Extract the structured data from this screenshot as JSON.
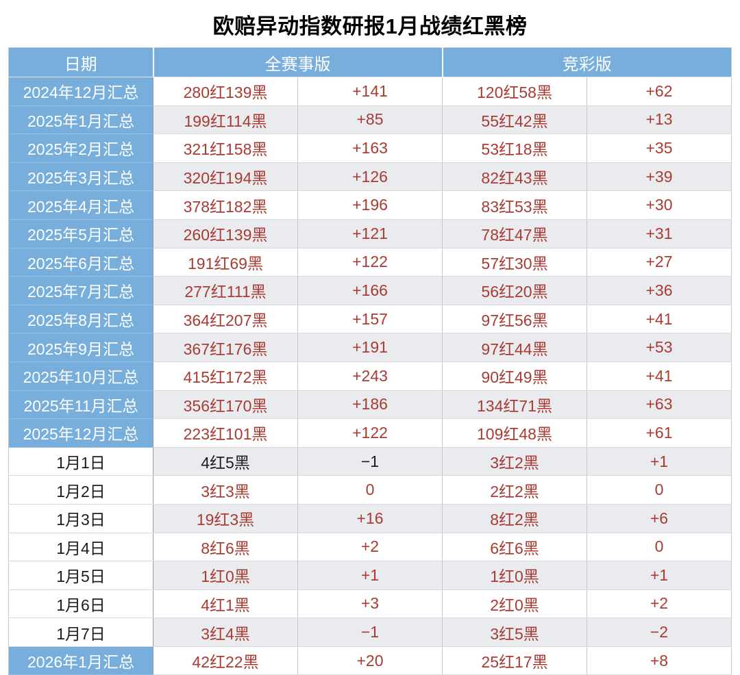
{
  "title": "欧赔异动指数研报1月战绩红黑榜",
  "header": {
    "date": "日期",
    "all_matches": "全赛事版",
    "jingcai": "竞彩版"
  },
  "colors": {
    "header_blue": "#77aedc",
    "summary_cell_blue": "#77aedc",
    "value_red": "#a93b32",
    "value_black": "#1c1c1e",
    "stripe_gray": "#e9ebef",
    "title_black": "#000000"
  },
  "chart_data": {
    "type": "table",
    "title": "欧赔异动指数研报1月战绩红黑榜",
    "columns": [
      {
        "label": "日期",
        "span": 1
      },
      {
        "label": "全赛事版",
        "span": 2
      },
      {
        "label": "竞彩版",
        "span": 2
      }
    ],
    "default_cell_color": "red",
    "rows": [
      {
        "date": "2024年12月汇总",
        "is_summary": true,
        "cells": [
          "280红139黑",
          "+141",
          "120红58黑",
          "+62"
        ]
      },
      {
        "date": "2025年1月汇总",
        "is_summary": true,
        "cells": [
          "199红114黑",
          "+85",
          "55红42黑",
          "+13"
        ]
      },
      {
        "date": "2025年2月汇总",
        "is_summary": true,
        "cells": [
          "321红158黑",
          "+163",
          "53红18黑",
          "+35"
        ]
      },
      {
        "date": "2025年3月汇总",
        "is_summary": true,
        "cells": [
          "320红194黑",
          "+126",
          "82红43黑",
          "+39"
        ]
      },
      {
        "date": "2025年4月汇总",
        "is_summary": true,
        "cells": [
          "378红182黑",
          "+196",
          "83红53黑",
          "+30"
        ]
      },
      {
        "date": "2025年5月汇总",
        "is_summary": true,
        "cells": [
          "260红139黑",
          "+121",
          "78红47黑",
          "+31"
        ]
      },
      {
        "date": "2025年6月汇总",
        "is_summary": true,
        "cells": [
          "191红69黑",
          "+122",
          "57红30黑",
          "+27"
        ]
      },
      {
        "date": "2025年7月汇总",
        "is_summary": true,
        "cells": [
          "277红111黑",
          "+166",
          "56红20黑",
          "+36"
        ]
      },
      {
        "date": "2025年8月汇总",
        "is_summary": true,
        "cells": [
          "364红207黑",
          "+157",
          "97红56黑",
          "+41"
        ]
      },
      {
        "date": "2025年9月汇总",
        "is_summary": true,
        "cells": [
          "367红176黑",
          "+191",
          "97红44黑",
          "+53"
        ]
      },
      {
        "date": "2025年10月汇总",
        "is_summary": true,
        "cells": [
          "415红172黑",
          "+243",
          "90红49黑",
          "+41"
        ]
      },
      {
        "date": "2025年11月汇总",
        "is_summary": true,
        "cells": [
          "356红170黑",
          "+186",
          "134红71黑",
          "+63"
        ]
      },
      {
        "date": "2025年12月汇总",
        "is_summary": true,
        "cells": [
          "223红101黑",
          "+122",
          "109红48黑",
          "+61"
        ]
      },
      {
        "date": "1月1日",
        "is_summary": false,
        "cells": [
          "4红5黑",
          "−1",
          "3红2黑",
          "+1"
        ],
        "cell_colors": [
          "black",
          "black",
          "red",
          "red"
        ]
      },
      {
        "date": "1月2日",
        "is_summary": false,
        "cells": [
          "3红3黑",
          "0",
          "2红2黑",
          "0"
        ]
      },
      {
        "date": "1月3日",
        "is_summary": false,
        "cells": [
          "19红3黑",
          "+16",
          "8红2黑",
          "+6"
        ]
      },
      {
        "date": "1月4日",
        "is_summary": false,
        "cells": [
          "8红6黑",
          "+2",
          "6红6黑",
          "0"
        ]
      },
      {
        "date": "1月5日",
        "is_summary": false,
        "cells": [
          "1红0黑",
          "+1",
          "1红0黑",
          "+1"
        ]
      },
      {
        "date": "1月6日",
        "is_summary": false,
        "cells": [
          "4红1黑",
          "+3",
          "2红0黑",
          "+2"
        ]
      },
      {
        "date": "1月7日",
        "is_summary": false,
        "cells": [
          "3红4黑",
          "−1",
          "3红5黑",
          "−2"
        ]
      },
      {
        "date": "2026年1月汇总",
        "is_summary": true,
        "cells": [
          "42红22黑",
          "+20",
          "25红17黑",
          "+8"
        ]
      }
    ]
  }
}
